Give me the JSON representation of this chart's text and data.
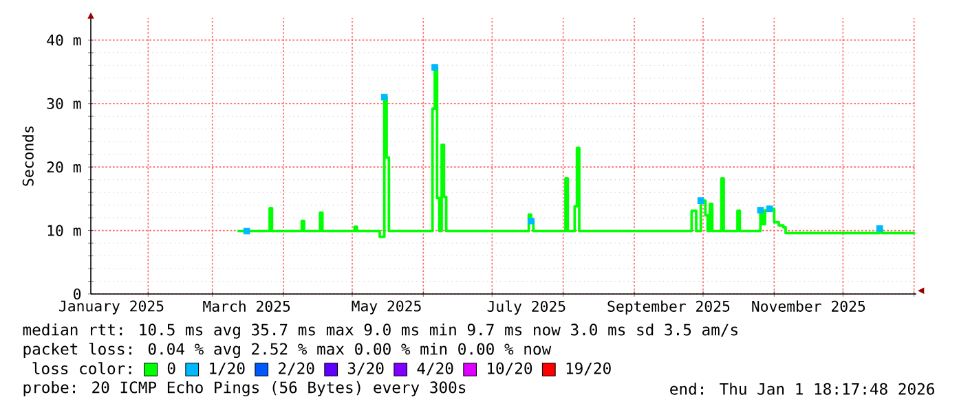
{
  "chart_data": {
    "type": "step",
    "ylabel": "Seconds",
    "legend_title": "loss color:",
    "xlim": [
      "2025-01-07",
      "2026-01-02"
    ],
    "xticks": [
      {
        "value": "2025-01-16",
        "label": "January 2025"
      },
      {
        "value": "2025-02-01",
        "label": null
      },
      {
        "value": "2025-03-01",
        "label": null
      },
      {
        "value": "2025-03-16",
        "label": "March 2025"
      },
      {
        "value": "2025-04-01",
        "label": null
      },
      {
        "value": "2025-05-01",
        "label": null
      },
      {
        "value": "2025-05-16",
        "label": "May 2025"
      },
      {
        "value": "2025-06-01",
        "label": null
      },
      {
        "value": "2025-07-01",
        "label": null
      },
      {
        "value": "2025-07-16",
        "label": "July 2025"
      },
      {
        "value": "2025-08-01",
        "label": null
      },
      {
        "value": "2025-09-01",
        "label": null
      },
      {
        "value": "2025-09-16",
        "label": "September 2025"
      },
      {
        "value": "2025-10-01",
        "label": null
      },
      {
        "value": "2025-11-01",
        "label": null
      },
      {
        "value": "2025-11-16",
        "label": "November 2025"
      },
      {
        "value": "2025-12-01",
        "label": null
      },
      {
        "value": "2026-01-01",
        "label": null
      }
    ],
    "ylim": [
      0,
      43.5
    ],
    "yticks": [
      0,
      {
        "value": 10,
        "label": "10 m"
      },
      {
        "value": 20,
        "label": "20 m"
      },
      {
        "value": 30,
        "label": "30 m"
      },
      {
        "value": 40,
        "label": "40 m"
      }
    ],
    "grid": true,
    "legend": "bottom",
    "series": [
      {
        "name": "0",
        "color": "#00ff00",
        "x": [
          "2025-03-12",
          "2025-03-26",
          "2025-03-27",
          "2025-04-09",
          "2025-04-10",
          "2025-04-17",
          "2025-04-18",
          "2025-05-02",
          "2025-05-03",
          "2025-05-13",
          "2025-05-15",
          "2025-05-16",
          "2025-05-17",
          "2025-06-05",
          "2025-06-06",
          "2025-06-07",
          "2025-06-08",
          "2025-06-09",
          "2025-06-10",
          "2025-06-11",
          "2025-07-17",
          "2025-07-18",
          "2025-07-19",
          "2025-08-02",
          "2025-08-03",
          "2025-08-06",
          "2025-08-07",
          "2025-08-08",
          "2025-09-26",
          "2025-09-28",
          "2025-09-30",
          "2025-10-02",
          "2025-10-03",
          "2025-10-04",
          "2025-10-05",
          "2025-10-09",
          "2025-10-10",
          "2025-10-16",
          "2025-10-17",
          "2025-10-26",
          "2025-10-27",
          "2025-10-28",
          "2025-10-30",
          "2025-11-01",
          "2025-11-03",
          "2025-11-05",
          "2025-11-06",
          "2025-12-17",
          "2025-12-18",
          "2026-01-01"
        ],
        "values": [
          9.9,
          13.5,
          9.9,
          11.5,
          9.9,
          12.8,
          9.9,
          10.6,
          9.9,
          9.0,
          31.0,
          21.5,
          9.9,
          29.2,
          35.7,
          15.1,
          9.9,
          23.5,
          15.3,
          9.9,
          12.5,
          11.5,
          9.9,
          18.2,
          9.9,
          13.8,
          23.0,
          9.9,
          13.1,
          9.9,
          14.7,
          12.4,
          9.9,
          14.2,
          9.9,
          18.2,
          9.9,
          13.1,
          9.9,
          13.2,
          11.0,
          13.2,
          13.4,
          11.3,
          10.8,
          10.5,
          9.6,
          10.3,
          9.6,
          9.7
        ]
      },
      {
        "name": "1/20",
        "color": "#00b8ff",
        "type": "scatter",
        "marker": "square",
        "x": [
          "2025-03-16",
          "2025-05-15",
          "2025-06-06",
          "2025-07-18",
          "2025-09-30",
          "2025-10-26",
          "2025-10-30",
          "2025-12-17"
        ],
        "values": [
          9.9,
          31.0,
          35.7,
          11.5,
          14.7,
          13.2,
          13.4,
          10.3
        ]
      },
      {
        "name": "2/20",
        "color": "#0059ff"
      },
      {
        "name": "3/20",
        "color": "#5e00ff"
      },
      {
        "name": "4/20",
        "color": "#7e00ff"
      },
      {
        "name": "10/20",
        "color": "#dd00ff"
      },
      {
        "name": "19/20",
        "color": "#ff0000"
      }
    ],
    "annotations": [
      "median rtt:  10.5 ms avg  35.7 ms max  9.0 ms min  9.7 ms now  3.0 ms sd  3.5   am/s",
      "packet loss: 0.04 % avg  2.52 % max  0.00 % min  0.00 % now",
      "probe:       20 ICMP Echo Pings (56 Bytes) every 300s",
      "end: Thu Jan  1 18:17:48 2026"
    ]
  }
}
